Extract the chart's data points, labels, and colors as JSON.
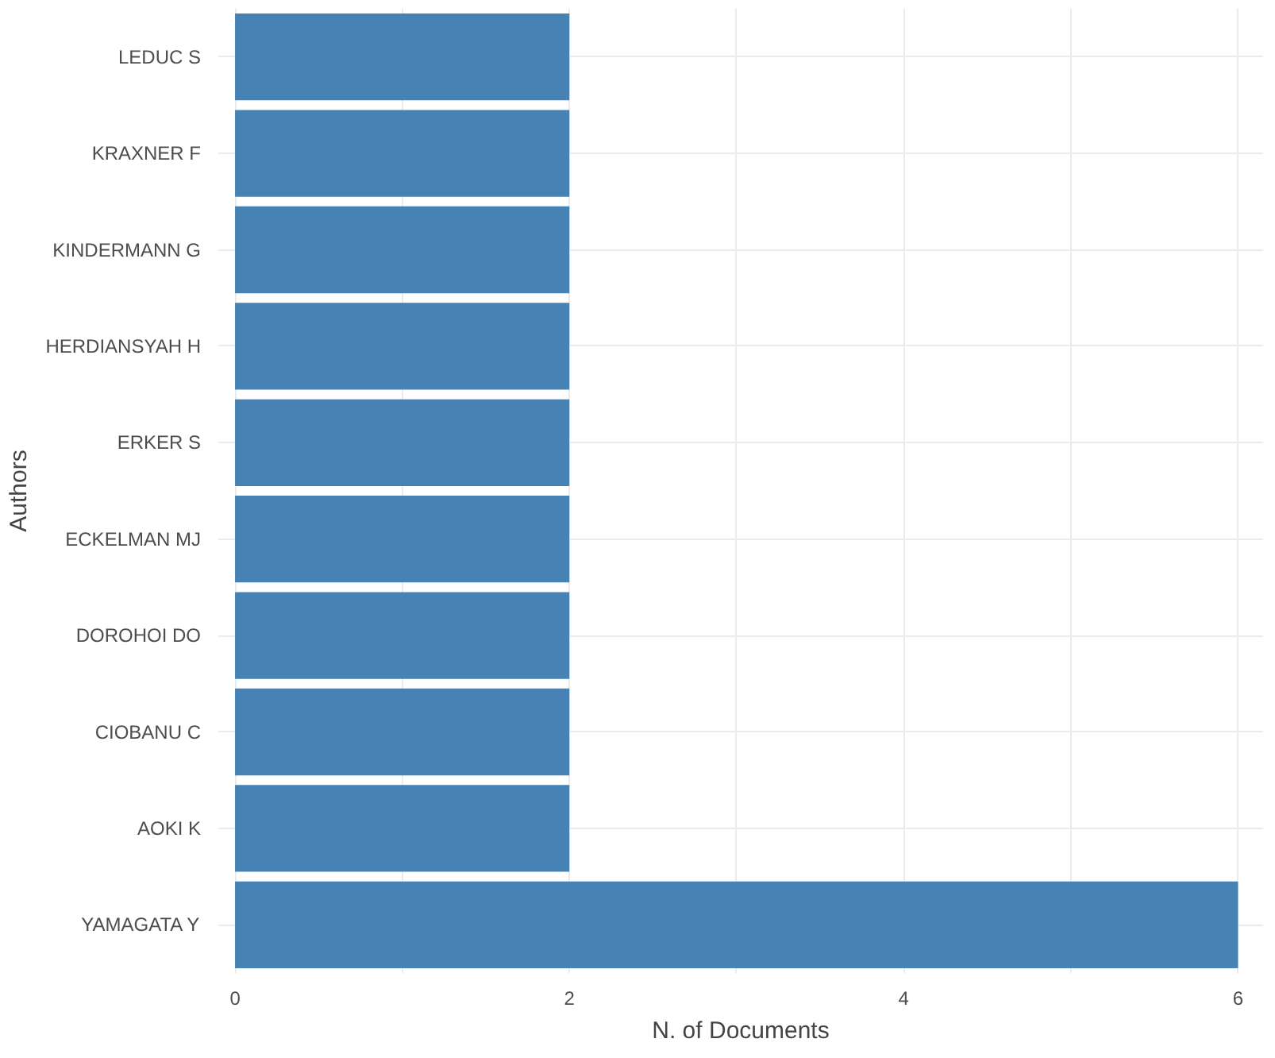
{
  "chart_data": {
    "type": "bar",
    "orientation": "horizontal",
    "xlabel": "N. of Documents",
    "ylabel": "Authors",
    "categories": [
      "LEDUC S",
      "KRAXNER F",
      "KINDERMANN G",
      "HERDIANSYAH H",
      "ERKER S",
      "ECKELMAN MJ",
      "DOROHOI DO",
      "CIOBANU C",
      "AOKI K",
      "YAMAGATA Y"
    ],
    "values": [
      2,
      2,
      2,
      2,
      2,
      2,
      2,
      2,
      2,
      6
    ],
    "color": "#4682b4",
    "xlim": [
      -0.1,
      6.15
    ],
    "xticks": [
      0,
      {
        "value": 1,
        "label": null
      },
      2,
      {
        "value": 3,
        "label": null
      },
      4,
      {
        "value": 5,
        "label": null
      },
      6
    ],
    "grid": true
  }
}
